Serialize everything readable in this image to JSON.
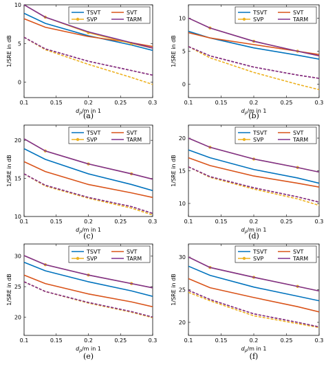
{
  "colors": {
    "TSVT": "#0072BD",
    "SVT": "#D95319",
    "SVP": "#EDB120",
    "TARM": "#7E2F8E"
  },
  "chart_data": [
    {
      "type": "line",
      "caption": "(a)",
      "xlabel": "d_ρ/m in 1",
      "ylabel": "1/SRE in dB",
      "xlim": [
        0.1,
        0.3
      ],
      "ylim": [
        -2,
        10
      ],
      "xticks": [
        0.1,
        0.15,
        0.2,
        0.25,
        0.3
      ],
      "yticks": [
        0,
        5,
        10
      ],
      "legend": [
        "TSVT",
        "SVT",
        "SVP",
        "TARM"
      ],
      "series": [
        {
          "name": "TSVT",
          "x": [
            0.1,
            0.133,
            0.2,
            0.267,
            0.3
          ],
          "y": [
            8.9,
            7.6,
            6.0,
            4.8,
            4.1
          ]
        },
        {
          "name": "SVT",
          "x": [
            0.1,
            0.133,
            0.2,
            0.267,
            0.3
          ],
          "y": [
            8.2,
            7.1,
            5.9,
            5.1,
            4.6
          ]
        },
        {
          "name": "SVP",
          "x": [
            0.1,
            0.133,
            0.2,
            0.267,
            0.3
          ],
          "y": [
            10.0,
            8.4,
            6.4,
            5.0,
            4.4
          ]
        },
        {
          "name": "TARM",
          "x": [
            0.1,
            0.133,
            0.2,
            0.267,
            0.3
          ],
          "y": [
            10.0,
            8.4,
            6.5,
            5.1,
            4.4
          ]
        },
        {
          "name": "SVT",
          "x": [
            0.1,
            0.133,
            0.2,
            0.267,
            0.3
          ],
          "y": [
            5.8,
            4.3,
            2.7,
            1.5,
            0.9
          ],
          "style": "dashed"
        },
        {
          "name": "SVP",
          "x": [
            0.1,
            0.133,
            0.2,
            0.267,
            0.3
          ],
          "y": [
            5.8,
            4.2,
            2.3,
            0.6,
            -0.3
          ],
          "style": "dashed"
        },
        {
          "name": "TARM",
          "x": [
            0.1,
            0.133,
            0.2,
            0.267,
            0.3
          ],
          "y": [
            5.8,
            4.3,
            2.7,
            1.5,
            0.9
          ],
          "style": "dashed"
        }
      ]
    },
    {
      "type": "line",
      "caption": "(b)",
      "xlabel": "d_ρ/m in 1",
      "ylabel": "1/SRE in dB",
      "xlim": [
        0.1,
        0.3
      ],
      "ylim": [
        -2,
        12
      ],
      "xticks": [
        0.1,
        0.15,
        0.2,
        0.25,
        0.3
      ],
      "yticks": [
        0,
        5,
        10
      ],
      "legend": [
        "TSVT",
        "SVT",
        "SVP",
        "TARM"
      ],
      "series": [
        {
          "name": "TSVT",
          "x": [
            0.1,
            0.133,
            0.2,
            0.267,
            0.3
          ],
          "y": [
            8.0,
            7.0,
            5.5,
            4.4,
            3.8
          ]
        },
        {
          "name": "SVT",
          "x": [
            0.1,
            0.133,
            0.2,
            0.267,
            0.3
          ],
          "y": [
            7.8,
            7.0,
            6.0,
            5.0,
            4.5
          ]
        },
        {
          "name": "SVP",
          "x": [
            0.1,
            0.133,
            0.2,
            0.267,
            0.3
          ],
          "y": [
            10.0,
            8.5,
            6.5,
            5.0,
            4.3
          ]
        },
        {
          "name": "TARM",
          "x": [
            0.1,
            0.133,
            0.2,
            0.267,
            0.3
          ],
          "y": [
            10.0,
            8.5,
            6.5,
            5.0,
            4.3
          ]
        },
        {
          "name": "SVT",
          "x": [
            0.1,
            0.133,
            0.2,
            0.267,
            0.3
          ],
          "y": [
            5.7,
            4.3,
            2.6,
            1.4,
            0.9
          ],
          "style": "dashed"
        },
        {
          "name": "SVP",
          "x": [
            0.1,
            0.133,
            0.2,
            0.267,
            0.3
          ],
          "y": [
            5.7,
            4.0,
            1.8,
            0.0,
            -0.8
          ],
          "style": "dashed"
        },
        {
          "name": "TARM",
          "x": [
            0.1,
            0.133,
            0.2,
            0.267,
            0.3
          ],
          "y": [
            5.7,
            4.3,
            2.6,
            1.4,
            0.9
          ],
          "style": "dashed"
        }
      ]
    },
    {
      "type": "line",
      "caption": "(c)",
      "xlabel": "d_ρ/m in 1",
      "ylabel": "1/SRE in dB",
      "xlim": [
        0.1,
        0.3
      ],
      "ylim": [
        10,
        22
      ],
      "xticks": [
        0.1,
        0.15,
        0.2,
        0.25,
        0.3
      ],
      "yticks": [
        10,
        15,
        20
      ],
      "legend": [
        "TSVT",
        "SVT",
        "SVP",
        "TARM"
      ],
      "series": [
        {
          "name": "TSVT",
          "x": [
            0.1,
            0.133,
            0.2,
            0.267,
            0.3
          ],
          "y": [
            18.9,
            17.5,
            15.6,
            14.2,
            13.4
          ]
        },
        {
          "name": "SVT",
          "x": [
            0.1,
            0.133,
            0.2,
            0.267,
            0.3
          ],
          "y": [
            17.2,
            15.9,
            14.2,
            13.1,
            12.5
          ]
        },
        {
          "name": "SVP",
          "x": [
            0.1,
            0.133,
            0.2,
            0.267,
            0.3
          ],
          "y": [
            20.2,
            18.6,
            16.9,
            15.6,
            14.9
          ]
        },
        {
          "name": "TARM",
          "x": [
            0.1,
            0.133,
            0.2,
            0.267,
            0.3
          ],
          "y": [
            20.2,
            18.6,
            16.9,
            15.6,
            14.9
          ]
        },
        {
          "name": "SVT",
          "x": [
            0.1,
            0.133,
            0.2,
            0.267,
            0.3
          ],
          "y": [
            15.6,
            14.1,
            12.5,
            11.3,
            10.4
          ],
          "style": "dashed"
        },
        {
          "name": "SVP",
          "x": [
            0.1,
            0.133,
            0.2,
            0.267,
            0.3
          ],
          "y": [
            15.6,
            14.0,
            12.4,
            11.1,
            10.2
          ],
          "style": "dashed"
        },
        {
          "name": "TARM",
          "x": [
            0.1,
            0.133,
            0.2,
            0.267,
            0.3
          ],
          "y": [
            15.6,
            14.1,
            12.5,
            11.3,
            10.4
          ],
          "style": "dashed"
        }
      ]
    },
    {
      "type": "line",
      "caption": "(d)",
      "xlabel": "d_ρ/m in 1",
      "ylabel": "1/SRE in dB",
      "xlim": [
        0.1,
        0.3
      ],
      "ylim": [
        8,
        22
      ],
      "xticks": [
        0.1,
        0.15,
        0.2,
        0.25,
        0.3
      ],
      "yticks": [
        10,
        15,
        20
      ],
      "legend": [
        "TSVT",
        "SVT",
        "SVP",
        "TARM"
      ],
      "series": [
        {
          "name": "TSVT",
          "x": [
            0.1,
            0.133,
            0.2,
            0.267,
            0.3
          ],
          "y": [
            18.2,
            17.0,
            15.2,
            13.9,
            13.1
          ]
        },
        {
          "name": "SVT",
          "x": [
            0.1,
            0.133,
            0.2,
            0.267,
            0.3
          ],
          "y": [
            17.0,
            15.8,
            14.2,
            13.1,
            12.5
          ]
        },
        {
          "name": "SVP",
          "x": [
            0.1,
            0.133,
            0.2,
            0.267,
            0.3
          ],
          "y": [
            20.0,
            18.6,
            16.8,
            15.5,
            14.8
          ]
        },
        {
          "name": "TARM",
          "x": [
            0.1,
            0.133,
            0.2,
            0.267,
            0.3
          ],
          "y": [
            20.0,
            18.6,
            16.8,
            15.5,
            14.8
          ]
        },
        {
          "name": "SVT",
          "x": [
            0.1,
            0.133,
            0.2,
            0.267,
            0.3
          ],
          "y": [
            15.6,
            14.1,
            12.4,
            11.0,
            10.2
          ],
          "style": "dashed"
        },
        {
          "name": "SVP",
          "x": [
            0.1,
            0.133,
            0.2,
            0.267,
            0.3
          ],
          "y": [
            15.6,
            14.0,
            12.2,
            10.7,
            9.7
          ],
          "style": "dashed"
        },
        {
          "name": "TARM",
          "x": [
            0.1,
            0.133,
            0.2,
            0.267,
            0.3
          ],
          "y": [
            15.6,
            14.1,
            12.4,
            11.0,
            10.2
          ],
          "style": "dashed"
        }
      ]
    },
    {
      "type": "line",
      "caption": "(e)",
      "xlabel": "d_ρ/m in 1",
      "ylabel": "1/SRE in dB",
      "xlim": [
        0.1,
        0.3
      ],
      "ylim": [
        17,
        32
      ],
      "xticks": [
        0.1,
        0.15,
        0.2,
        0.25,
        0.3
      ],
      "yticks": [
        20,
        25,
        30
      ],
      "legend": [
        "TSVT",
        "SVT",
        "SVP",
        "TARM"
      ],
      "series": [
        {
          "name": "TSVT",
          "x": [
            0.1,
            0.133,
            0.2,
            0.267,
            0.3
          ],
          "y": [
            29.0,
            27.6,
            25.8,
            24.3,
            23.4
          ]
        },
        {
          "name": "SVT",
          "x": [
            0.1,
            0.133,
            0.2,
            0.267,
            0.3
          ],
          "y": [
            26.9,
            25.5,
            23.8,
            22.5,
            21.7
          ]
        },
        {
          "name": "SVP",
          "x": [
            0.1,
            0.133,
            0.2,
            0.267,
            0.3
          ],
          "y": [
            30.1,
            28.6,
            26.9,
            25.5,
            24.8
          ]
        },
        {
          "name": "TARM",
          "x": [
            0.1,
            0.133,
            0.2,
            0.267,
            0.3
          ],
          "y": [
            30.1,
            28.6,
            26.9,
            25.5,
            24.8
          ]
        },
        {
          "name": "SVT",
          "x": [
            0.1,
            0.133,
            0.2,
            0.267,
            0.3
          ],
          "y": [
            25.8,
            24.2,
            22.4,
            20.9,
            20.0
          ],
          "style": "dashed"
        },
        {
          "name": "SVP",
          "x": [
            0.1,
            0.133,
            0.2,
            0.267,
            0.3
          ],
          "y": [
            25.8,
            24.2,
            22.3,
            20.8,
            19.9
          ],
          "style": "dashed"
        },
        {
          "name": "TARM",
          "x": [
            0.1,
            0.133,
            0.2,
            0.267,
            0.3
          ],
          "y": [
            25.8,
            24.2,
            22.4,
            20.9,
            20.0
          ],
          "style": "dashed"
        }
      ]
    },
    {
      "type": "line",
      "caption": "(f)",
      "xlabel": "d_ρ/m in 1",
      "ylabel": "1/SRE in dB",
      "xlim": [
        0.1,
        0.3
      ],
      "ylim": [
        18,
        32
      ],
      "xticks": [
        0.1,
        0.15,
        0.2,
        0.25,
        0.3
      ],
      "yticks": [
        20,
        25,
        30
      ],
      "legend": [
        "TSVT",
        "SVT",
        "SVP",
        "TARM"
      ],
      "series": [
        {
          "name": "TSVT",
          "x": [
            0.1,
            0.133,
            0.2,
            0.267,
            0.3
          ],
          "y": [
            28.6,
            27.2,
            25.4,
            24.0,
            23.3
          ]
        },
        {
          "name": "SVT",
          "x": [
            0.1,
            0.133,
            0.2,
            0.267,
            0.3
          ],
          "y": [
            26.7,
            25.3,
            23.8,
            22.4,
            21.6
          ]
        },
        {
          "name": "SVP",
          "x": [
            0.1,
            0.133,
            0.2,
            0.267,
            0.3
          ],
          "y": [
            30.0,
            28.4,
            26.9,
            25.5,
            24.8
          ]
        },
        {
          "name": "TARM",
          "x": [
            0.1,
            0.133,
            0.2,
            0.267,
            0.3
          ],
          "y": [
            30.0,
            28.4,
            26.9,
            25.5,
            24.8
          ]
        },
        {
          "name": "SVT",
          "x": [
            0.1,
            0.133,
            0.2,
            0.267,
            0.3
          ],
          "y": [
            24.9,
            23.5,
            21.3,
            20.0,
            19.3
          ],
          "style": "dashed"
        },
        {
          "name": "SVP",
          "x": [
            0.1,
            0.133,
            0.2,
            0.267,
            0.3
          ],
          "y": [
            24.6,
            23.3,
            21.0,
            19.8,
            19.2
          ],
          "style": "dashed"
        },
        {
          "name": "TARM",
          "x": [
            0.1,
            0.133,
            0.2,
            0.267,
            0.3
          ],
          "y": [
            24.9,
            23.5,
            21.3,
            20.0,
            19.3
          ],
          "style": "dashed"
        }
      ]
    }
  ]
}
